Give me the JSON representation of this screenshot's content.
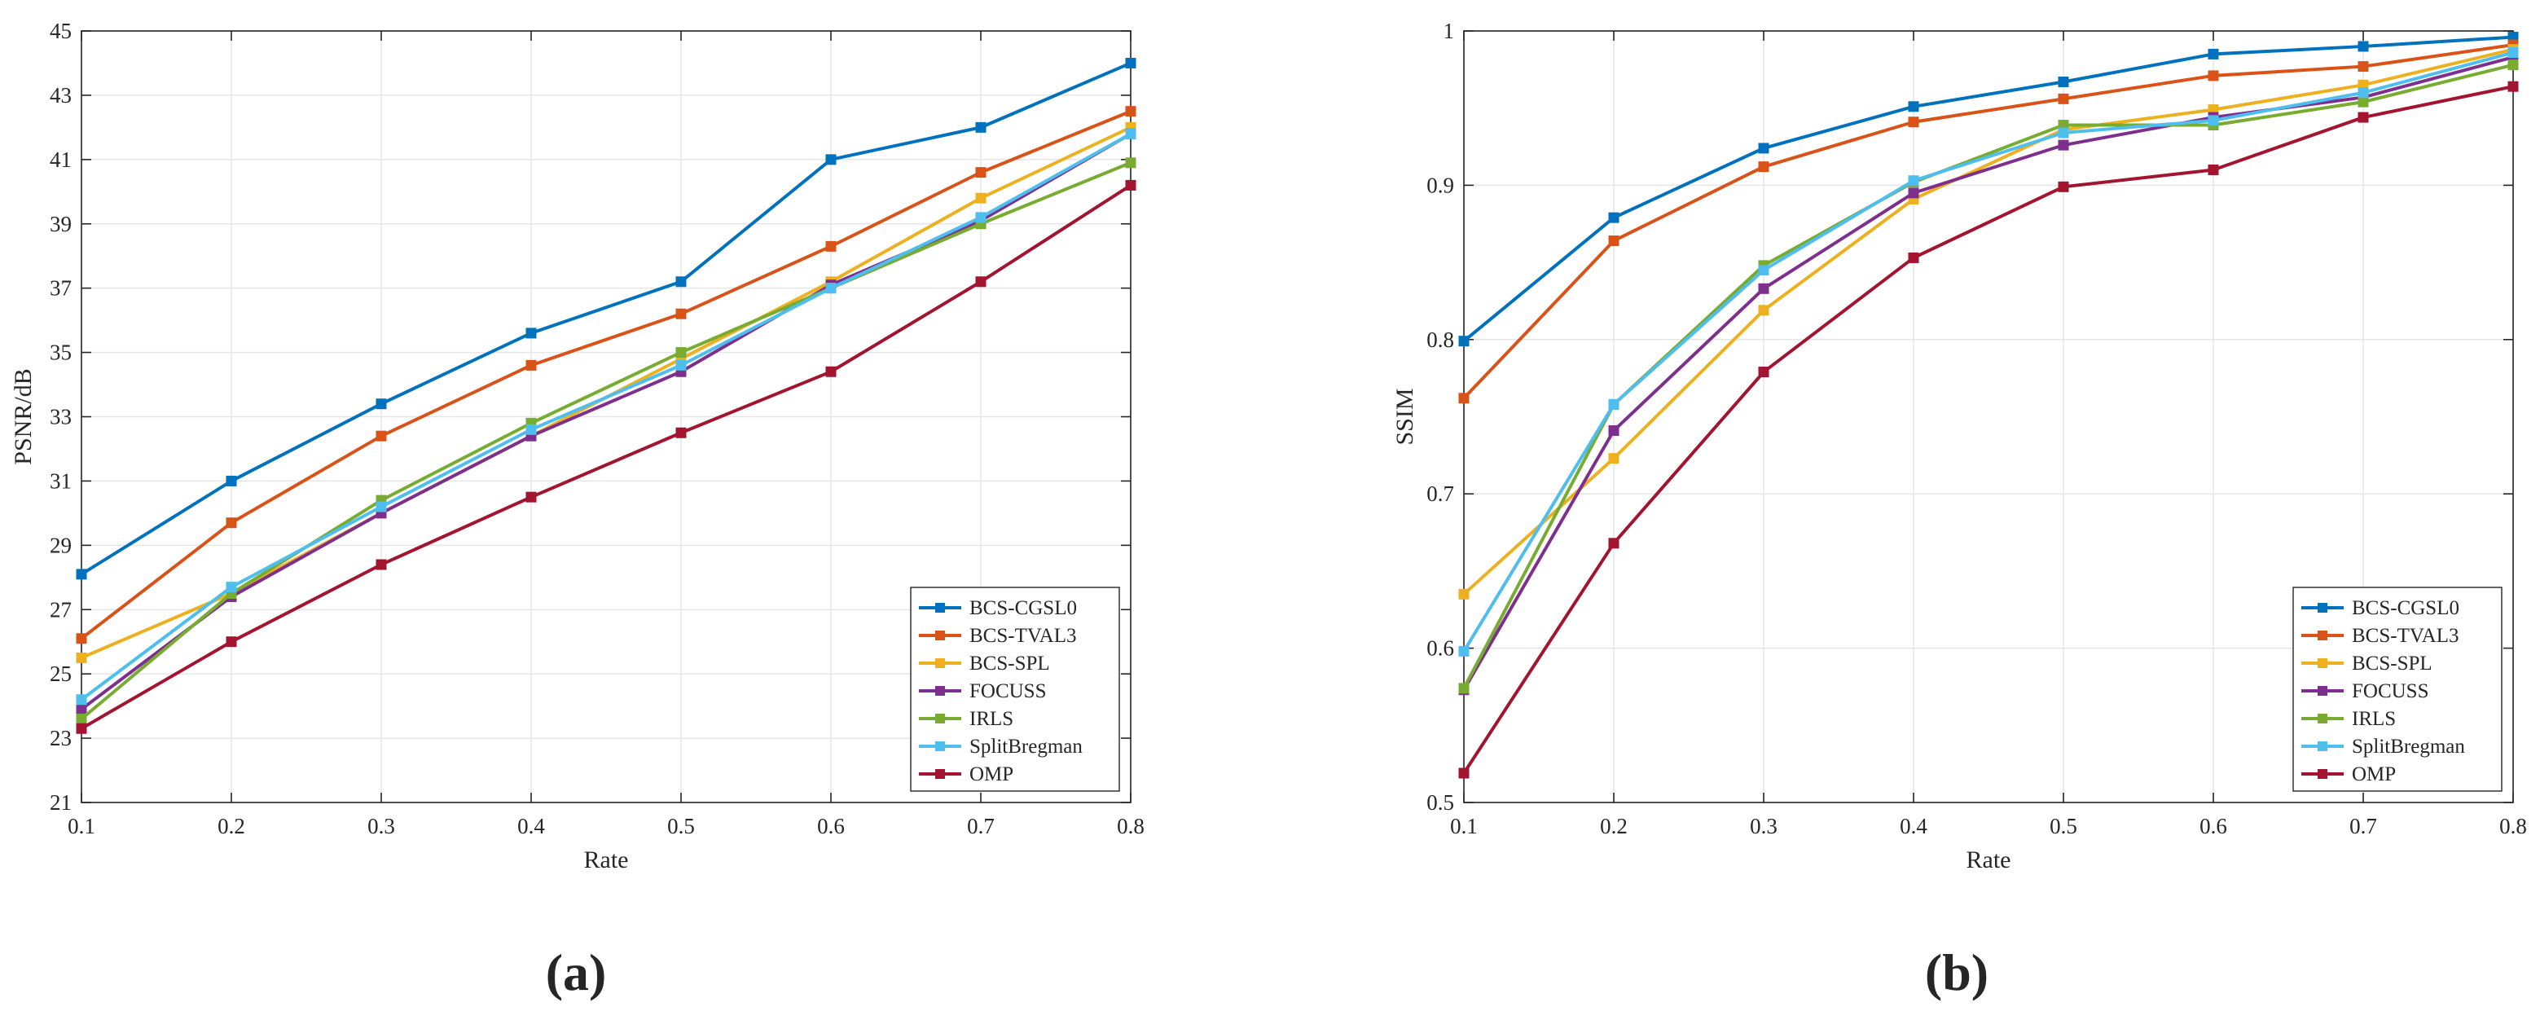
{
  "chart_data": [
    {
      "type": "line",
      "panel_label": "(a)",
      "xlabel": "Rate",
      "ylabel": "PSNR/dB",
      "x": [
        0.1,
        0.2,
        0.3,
        0.4,
        0.5,
        0.6,
        0.7,
        0.8
      ],
      "xlim": [
        0.1,
        0.8
      ],
      "ylim": [
        21,
        45
      ],
      "xticks": [
        "0.1",
        "0.2",
        "0.3",
        "0.4",
        "0.5",
        "0.6",
        "0.7",
        "0.8"
      ],
      "yticks": [
        "21",
        "23",
        "25",
        "27",
        "29",
        "31",
        "33",
        "35",
        "37",
        "39",
        "41",
        "43",
        "45"
      ],
      "grid": true,
      "legend_position": "bottom-right",
      "series": [
        {
          "name": "BCS-CGSL0",
          "color": "#0072BD",
          "values": [
            28.1,
            31.0,
            33.4,
            35.6,
            37.2,
            41.0,
            42.0,
            44.0
          ]
        },
        {
          "name": "BCS-TVAL3",
          "color": "#D95319",
          "values": [
            26.1,
            29.7,
            32.4,
            34.6,
            36.2,
            38.3,
            40.6,
            42.5
          ]
        },
        {
          "name": "BCS-SPL",
          "color": "#EDB120",
          "values": [
            25.5,
            27.5,
            30.0,
            32.4,
            34.8,
            37.2,
            39.8,
            42.0
          ]
        },
        {
          "name": "FOCUSS",
          "color": "#7E2F8E",
          "values": [
            23.9,
            27.4,
            30.0,
            32.4,
            34.4,
            37.1,
            39.1,
            41.8
          ]
        },
        {
          "name": "IRLS",
          "color": "#77AC30",
          "values": [
            23.6,
            27.5,
            30.4,
            32.8,
            35.0,
            37.0,
            39.0,
            40.9
          ]
        },
        {
          "name": "SplitBregman",
          "color": "#4DBEEE",
          "values": [
            24.2,
            27.7,
            30.2,
            32.6,
            34.6,
            37.0,
            39.2,
            41.8
          ]
        },
        {
          "name": "OMP",
          "color": "#A2142F",
          "values": [
            23.3,
            26.0,
            28.4,
            30.5,
            32.5,
            34.4,
            37.2,
            40.2
          ]
        }
      ]
    },
    {
      "type": "line",
      "panel_label": "(b)",
      "xlabel": "Rate",
      "ylabel": "SSIM",
      "x": [
        0.1,
        0.2,
        0.3,
        0.4,
        0.5,
        0.6,
        0.7,
        0.8
      ],
      "xlim": [
        0.1,
        0.8
      ],
      "ylim": [
        0.5,
        1.0
      ],
      "xticks": [
        "0.1",
        "0.2",
        "0.3",
        "0.4",
        "0.5",
        "0.6",
        "0.7",
        "0.8"
      ],
      "yticks": [
        "0.5",
        "0.6",
        "0.7",
        "0.8",
        "0.9",
        "1"
      ],
      "grid": true,
      "legend_position": "bottom-right",
      "series": [
        {
          "name": "BCS-CGSL0",
          "color": "#0072BD",
          "values": [
            0.799,
            0.879,
            0.924,
            0.951,
            0.967,
            0.985,
            0.99,
            0.996
          ]
        },
        {
          "name": "BCS-TVAL3",
          "color": "#D95319",
          "values": [
            0.762,
            0.864,
            0.912,
            0.941,
            0.956,
            0.971,
            0.977,
            0.991
          ]
        },
        {
          "name": "BCS-SPL",
          "color": "#EDB120",
          "values": [
            0.635,
            0.723,
            0.819,
            0.891,
            0.936,
            0.949,
            0.965,
            0.988
          ]
        },
        {
          "name": "FOCUSS",
          "color": "#7E2F8E",
          "values": [
            0.573,
            0.741,
            0.833,
            0.895,
            0.926,
            0.944,
            0.957,
            0.983
          ]
        },
        {
          "name": "IRLS",
          "color": "#77AC30",
          "values": [
            0.574,
            0.758,
            0.848,
            0.902,
            0.939,
            0.939,
            0.954,
            0.978
          ]
        },
        {
          "name": "SplitBregman",
          "color": "#4DBEEE",
          "values": [
            0.598,
            0.758,
            0.845,
            0.903,
            0.934,
            0.942,
            0.96,
            0.986
          ]
        },
        {
          "name": "OMP",
          "color": "#A2142F",
          "values": [
            0.519,
            0.668,
            0.779,
            0.853,
            0.899,
            0.91,
            0.944,
            0.964
          ]
        }
      ]
    }
  ]
}
